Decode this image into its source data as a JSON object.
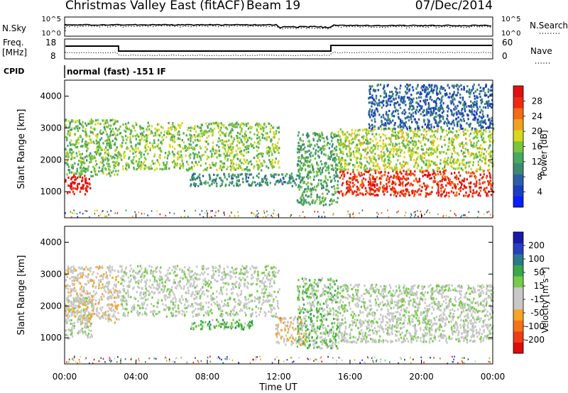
{
  "header": {
    "title": "Christmas Valley East (fitACF)",
    "beam": "Beam 19",
    "date": "07/Dec/2014"
  },
  "strip": {
    "nsky_label": "N.Sky",
    "nsearch_label": "N.Search",
    "left_scale": [
      "10^5",
      "10^0"
    ],
    "right_scale": [
      "10^5",
      "10^0"
    ],
    "freq_label": "Freq.",
    "freq_unit": "[MHz]",
    "freq_ticks": [
      "18",
      "8"
    ],
    "nave_label": "Nave",
    "nave_ticks": [
      "60",
      "0"
    ],
    "cpid_label": "CPID",
    "cpid_text": "normal (fast) -151 IF"
  },
  "chart_data": [
    {
      "type": "heatmap",
      "title": "",
      "xlabel": "Time UT",
      "ylabel": "Slant Range [km]",
      "x_ticks": [
        "00:00",
        "04:00",
        "08:00",
        "12:00",
        "16:00",
        "20:00",
        "00:00"
      ],
      "y_ticks": [
        "1000",
        "2000",
        "3000",
        "4000"
      ],
      "xlim_hours": [
        0,
        24
      ],
      "ylim_km": [
        180,
        4500
      ],
      "colorbar": {
        "label": "Power [dB]",
        "ticks": [
          "28",
          "24",
          "20",
          "16",
          "12",
          "8",
          "4"
        ],
        "range": [
          0,
          30
        ],
        "colors": [
          "#0a1eff",
          "#1c3ec2",
          "#2d5fa6",
          "#3e8a70",
          "#4aa860",
          "#7cc43c",
          "#d8d81e",
          "#f0a21e",
          "#f56a14",
          "#ee2a12",
          "#e01010"
        ]
      },
      "features": [
        {
          "name": "early red band",
          "time_h": [
            0.0,
            1.4
          ],
          "range_km": [
            950,
            1550
          ],
          "value_db": 28
        },
        {
          "name": "early rising arc",
          "time_h": [
            0.0,
            3.0
          ],
          "range_km": [
            1500,
            3300
          ],
          "value_db": 14
        },
        {
          "name": "morning arc",
          "time_h": [
            3.0,
            12.0
          ],
          "range_km": [
            1700,
            3200
          ],
          "value_db": 15
        },
        {
          "name": "midday band",
          "time_h": [
            7.0,
            13.0
          ],
          "range_km": [
            1200,
            1600
          ],
          "value_db": 10
        },
        {
          "name": "afternoon descent",
          "time_h": [
            13.0,
            15.3
          ],
          "range_km": [
            600,
            2900
          ],
          "value_db": 12
        },
        {
          "name": "evening red band",
          "time_h": [
            15.3,
            24.0
          ],
          "range_km": [
            880,
            1700
          ],
          "value_db": 26
        },
        {
          "name": "evening upper bands",
          "time_h": [
            15.3,
            24.0
          ],
          "range_km": [
            1700,
            3000
          ],
          "value_db": 16
        },
        {
          "name": "evening sparse scatter",
          "time_h": [
            17.0,
            24.0
          ],
          "range_km": [
            3000,
            4400
          ],
          "value_db": 7
        }
      ]
    },
    {
      "type": "heatmap",
      "title": "",
      "xlabel": "Time UT",
      "ylabel": "Slant Range [km]",
      "x_ticks": [
        "00:00",
        "04:00",
        "08:00",
        "12:00",
        "16:00",
        "20:00",
        "00:00"
      ],
      "y_ticks": [
        "1000",
        "2000",
        "3000",
        "4000"
      ],
      "xlim_hours": [
        0,
        24
      ],
      "ylim_km": [
        180,
        4500
      ],
      "colorbar": {
        "label": "Velocity [m s⁻¹]",
        "ticks": [
          "200",
          "100",
          "50",
          "15",
          "-15",
          "-50",
          "-100",
          "-200"
        ],
        "range": [
          -250,
          250
        ],
        "colors": [
          "#e00a0a",
          "#f03c14",
          "#f57318",
          "#f5a623",
          "#c8c8c8",
          "#c8c8c8",
          "#76cc4a",
          "#3aa84a",
          "#2a7a8a",
          "#2a3ec2",
          "#1a1aa8"
        ]
      },
      "features": [
        {
          "name": "early ground scatter",
          "time_h": [
            0.0,
            1.5
          ],
          "range_km": [
            1000,
            2300
          ],
          "value_ms": 0
        },
        {
          "name": "early rising arc",
          "time_h": [
            0.0,
            3.0
          ],
          "range_km": [
            1500,
            3300
          ],
          "value_ms": -40
        },
        {
          "name": "morning arc",
          "time_h": [
            3.0,
            12.0
          ],
          "range_km": [
            1700,
            3300
          ],
          "value_ms": 0
        },
        {
          "name": "midday band",
          "time_h": [
            7.0,
            10.5
          ],
          "range_km": [
            1300,
            1600
          ],
          "value_ms": 70
        },
        {
          "name": "midday orange cluster",
          "time_h": [
            11.8,
            13.5
          ],
          "range_km": [
            800,
            1700
          ],
          "value_ms": -60
        },
        {
          "name": "afternoon descent",
          "time_h": [
            13.0,
            15.3
          ],
          "range_km": [
            700,
            2900
          ],
          "value_ms": 40
        },
        {
          "name": "evening ground scatter",
          "time_h": [
            15.3,
            24.0
          ],
          "range_km": [
            880,
            1800
          ],
          "value_ms": 0
        },
        {
          "name": "evening upper bands",
          "time_h": [
            15.3,
            24.0
          ],
          "range_km": [
            1800,
            2700
          ],
          "value_ms": 0
        }
      ]
    }
  ]
}
